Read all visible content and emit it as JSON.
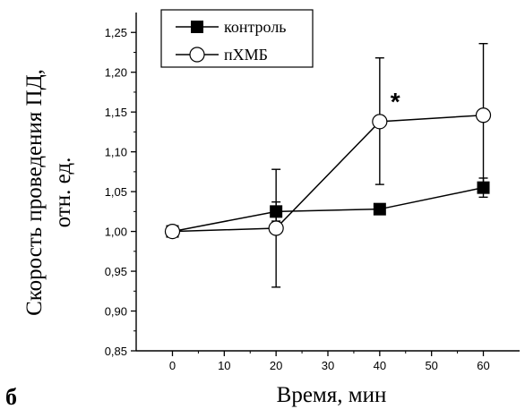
{
  "panel_label": "б",
  "chart_data": {
    "type": "line",
    "x": [
      0,
      20,
      40,
      60
    ],
    "xlabel": "Время, мин",
    "ylabel_line1": "Скорость проведения ПД,",
    "ylabel_line2": "отн. ед.",
    "xlim": [
      -7,
      67
    ],
    "ylim": [
      0.85,
      1.275
    ],
    "xticks": [
      0,
      10,
      20,
      30,
      40,
      50,
      60
    ],
    "xtick_labels": [
      "0",
      "10",
      "20",
      "30",
      "40",
      "50",
      "60"
    ],
    "yticks": [
      0.85,
      0.9,
      0.95,
      1.0,
      1.05,
      1.1,
      1.15,
      1.2,
      1.25
    ],
    "ytick_labels": [
      "0,85",
      "0,90",
      "0,95",
      "1,00",
      "1,05",
      "1,10",
      "1,15",
      "1,20",
      "1,25"
    ],
    "grid": false,
    "legend_position": "top-left",
    "series": [
      {
        "name": "контроль",
        "marker": "filled-square",
        "values": [
          1.0,
          1.025,
          1.028,
          1.055
        ],
        "error_low": [
          1.0,
          1.013,
          1.022,
          1.043
        ],
        "error_high": [
          1.0,
          1.037,
          1.034,
          1.067
        ]
      },
      {
        "name": "пХМБ",
        "marker": "open-circle",
        "values": [
          1.0,
          1.004,
          1.138,
          1.146
        ],
        "error_low": [
          1.0,
          0.93,
          1.059,
          1.057
        ],
        "error_high": [
          1.0,
          1.078,
          1.218,
          1.236
        ]
      }
    ],
    "annotations": [
      {
        "text": "*",
        "x": 43,
        "y": 1.168
      }
    ]
  }
}
